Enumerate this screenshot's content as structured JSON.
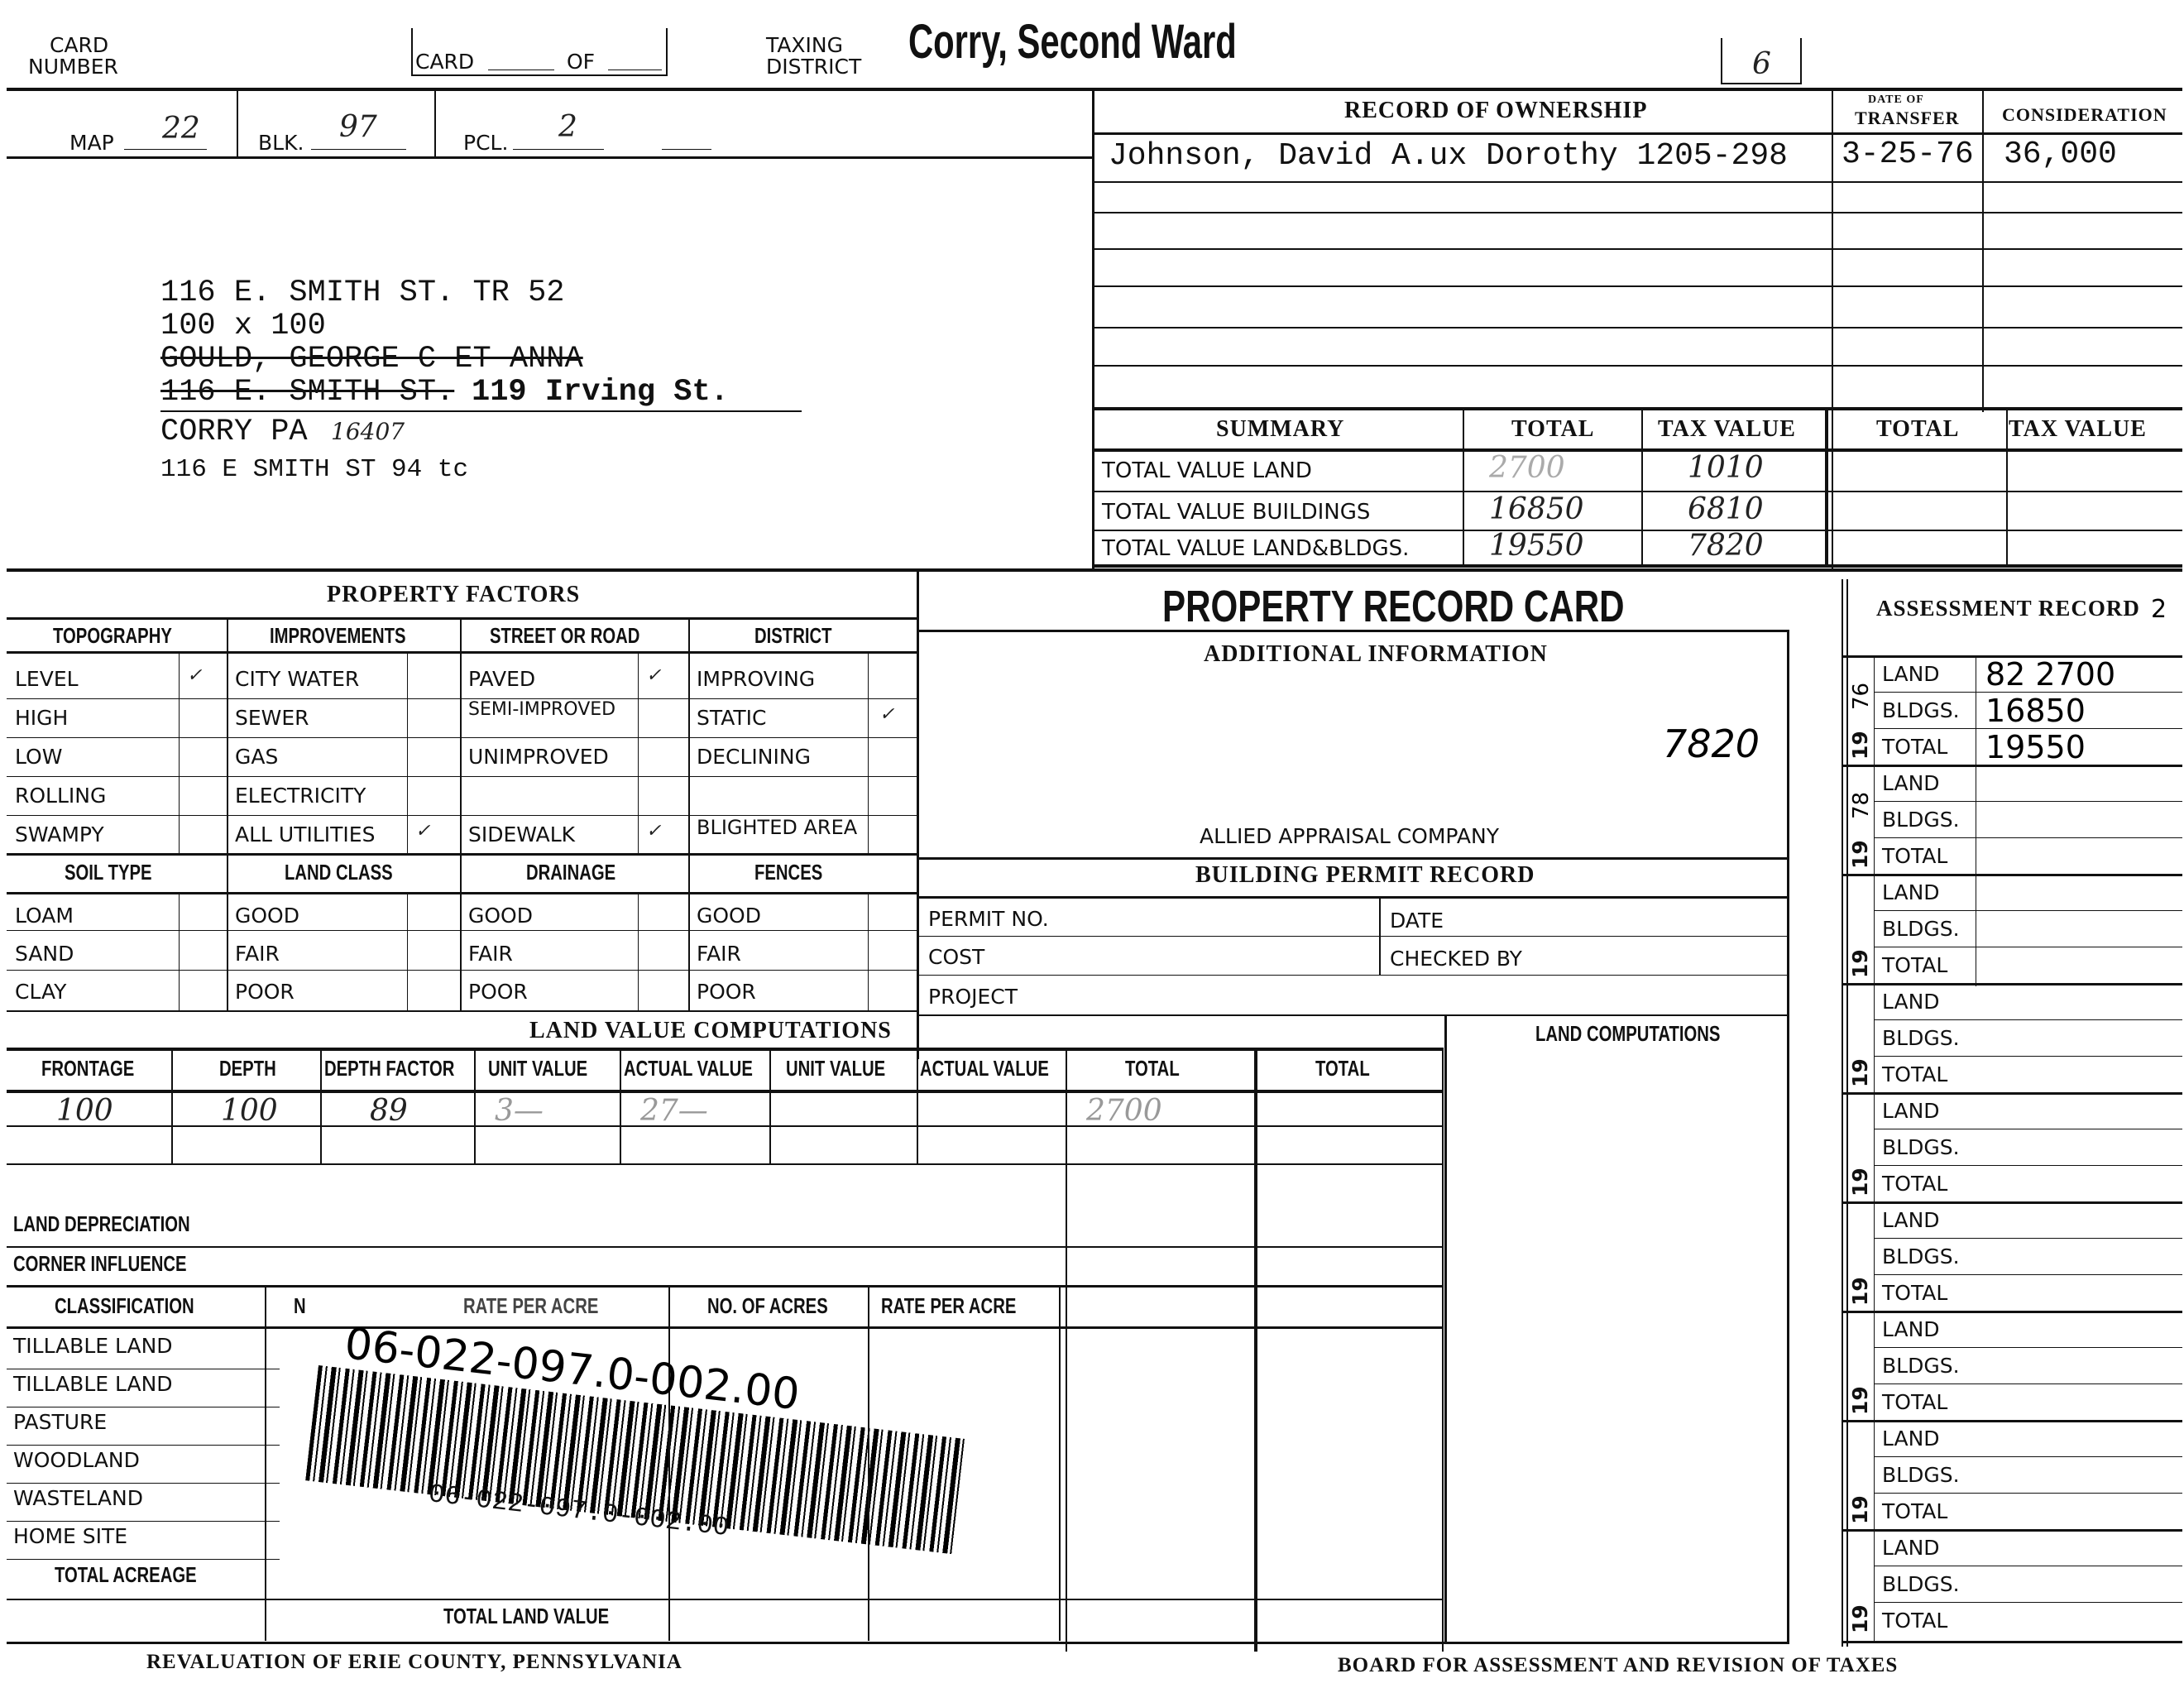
{
  "header": {
    "card_number_label": [
      "CARD",
      "NUMBER"
    ],
    "card_label": "CARD",
    "of_label": "OF",
    "taxing_district_label": [
      "TAXING",
      "DISTRICT"
    ],
    "taxing_district": "Corry, Second Ward",
    "box_number": "6"
  },
  "parcel": {
    "map_label": "MAP",
    "map": "22",
    "blk_label": "BLK.",
    "blk": "97",
    "pcl_label": "PCL.",
    "pcl": "2"
  },
  "address": {
    "lines": [
      "116 E. SMITH ST. TR 52",
      "100 x 100"
    ],
    "struck_lines": [
      "GOULD, GEORGE C ET ANNA",
      "116 E. SMITH ST."
    ],
    "struck_replacement": "119 Irving St.",
    "city": "CORRY PA",
    "zip": "16407",
    "current": "116 E SMITH ST  94  tc"
  },
  "ownership": {
    "title": "RECORD  OF  OWNERSHIP",
    "date_header": [
      "DATE OF",
      "TRANSFER"
    ],
    "consideration_header": "CONSIDERATION",
    "rows": [
      {
        "owner": "Johnson, David A.ux Dorothy 1205-298",
        "date": "3-25-76",
        "consideration": "36,000"
      }
    ]
  },
  "summary": {
    "headers": [
      "SUMMARY",
      "TOTAL",
      "TAX VALUE",
      "TOTAL",
      "TAX VALUE"
    ],
    "rows": [
      {
        "label": "TOTAL VALUE LAND",
        "total": "2700",
        "tax": "1010"
      },
      {
        "label": "TOTAL VALUE BUILDINGS",
        "total": "16850",
        "tax": "6810"
      },
      {
        "label": "TOTAL VALUE LAND&BLDGS.",
        "total": "19550",
        "tax": "7820"
      }
    ]
  },
  "property_factors": {
    "title": "PROPERTY  FACTORS",
    "groups": [
      {
        "header": "TOPOGRAPHY",
        "items": [
          "LEVEL",
          "HIGH",
          "LOW",
          "ROLLING",
          "SWAMPY"
        ],
        "checked": [
          true,
          false,
          false,
          false,
          false
        ]
      },
      {
        "header": "IMPROVEMENTS",
        "items": [
          "CITY WATER",
          "SEWER",
          "GAS",
          "ELECTRICITY",
          "ALL UTILITIES"
        ],
        "checked": [
          false,
          false,
          false,
          false,
          true
        ]
      },
      {
        "header": "STREET OR ROAD",
        "items": [
          "PAVED",
          "SEMI-IMPROVED",
          "UNIMPROVED",
          "",
          "SIDEWALK"
        ],
        "checked": [
          true,
          false,
          false,
          false,
          true
        ]
      },
      {
        "header": "DISTRICT",
        "items": [
          "IMPROVING",
          "STATIC",
          "DECLINING",
          "",
          "BLIGHTED AREA"
        ],
        "checked": [
          false,
          true,
          false,
          false,
          false
        ]
      }
    ],
    "groups2": [
      {
        "header": "SOIL TYPE",
        "items": [
          "LOAM",
          "SAND",
          "CLAY"
        ]
      },
      {
        "header": "LAND CLASS",
        "items": [
          "GOOD",
          "FAIR",
          "POOR"
        ]
      },
      {
        "header": "DRAINAGE",
        "items": [
          "GOOD",
          "FAIR",
          "POOR"
        ]
      },
      {
        "header": "FENCES",
        "items": [
          "GOOD",
          "FAIR",
          "POOR"
        ]
      }
    ]
  },
  "land_value": {
    "title": "LAND  VALUE  COMPUTATIONS",
    "headers": [
      "FRONTAGE",
      "DEPTH",
      "DEPTH FACTOR",
      "UNIT VALUE",
      "ACTUAL VALUE",
      "UNIT VALUE",
      "ACTUAL VALUE",
      "TOTAL",
      "TOTAL"
    ],
    "rows": [
      [
        "100",
        "100",
        "89",
        "3—",
        "27—",
        "",
        "",
        "2700",
        ""
      ]
    ],
    "land_depreciation": "LAND DEPRECIATION",
    "corner_influence": "CORNER INFLUENCE"
  },
  "classification": {
    "headers": [
      "CLASSIFICATION",
      "N",
      "RATE PER ACRE",
      "NO. OF ACRES",
      "RATE PER ACRE"
    ],
    "rows": [
      "TILLABLE LAND",
      "TILLABLE LAND",
      "PASTURE",
      "WOODLAND",
      "WASTELAND",
      "HOME SITE"
    ],
    "total_acreage": "TOTAL ACREAGE",
    "total_land_value": "TOTAL LAND VALUE"
  },
  "barcode": {
    "handwritten": "06-022-097.0-002.00",
    "printed": "06-022-097.0-002.00"
  },
  "middle": {
    "title": "PROPERTY RECORD CARD",
    "additional_info": "ADDITIONAL  INFORMATION",
    "note": "7820",
    "company": "ALLIED APPRAISAL COMPANY",
    "permit_title": "BUILDING  PERMIT  RECORD",
    "permit_no": "PERMIT NO.",
    "date": "DATE",
    "cost": "COST",
    "checked_by": "CHECKED BY",
    "project": "PROJECT",
    "land_computations": "LAND COMPUTATIONS"
  },
  "assessment": {
    "title": "ASSESSMENT   RECORD",
    "annotation": "2",
    "year_prefix": "19",
    "labels": [
      "LAND",
      "BLDGS.",
      "TOTAL"
    ],
    "blocks": [
      {
        "year": "76",
        "values": [
          "82 2700",
          "16850",
          "19550"
        ]
      },
      {
        "year": "78",
        "values": [
          "",
          "",
          ""
        ]
      },
      {
        "year": "",
        "values": [
          "",
          "",
          ""
        ]
      },
      {
        "year": "",
        "values": [
          "",
          "",
          ""
        ]
      },
      {
        "year": "",
        "values": [
          "",
          "",
          ""
        ]
      },
      {
        "year": "",
        "values": [
          "",
          "",
          ""
        ]
      },
      {
        "year": "",
        "values": [
          "",
          "",
          ""
        ]
      },
      {
        "year": "",
        "values": [
          "",
          "",
          ""
        ]
      },
      {
        "year": "",
        "values": [
          "",
          "",
          ""
        ]
      }
    ]
  },
  "footer": {
    "left": "REVALUATION OF ERIE COUNTY, PENNSYLVANIA",
    "right": "BOARD FOR ASSESSMENT AND REVISION OF TAXES"
  }
}
